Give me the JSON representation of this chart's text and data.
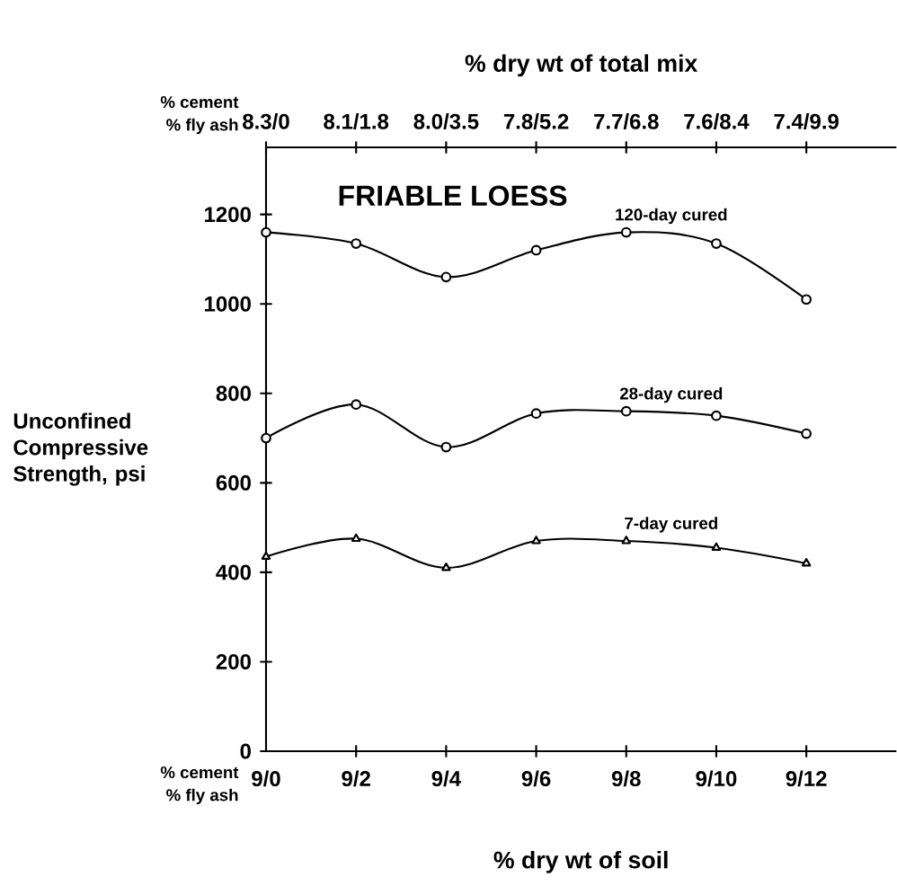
{
  "chart_data": {
    "type": "line",
    "title": "FRIABLE LOESS",
    "xlabel": "% dry wt of soil",
    "x2label": "% dry wt of total mix",
    "ylabel": "Unconfined Compressive Strength, psi",
    "categories": [
      "9/0",
      "9/2",
      "9/4",
      "9/6",
      "9/8",
      "9/10",
      "9/12"
    ],
    "ylim": [
      0,
      1350
    ],
    "yticks": [
      0,
      200,
      400,
      600,
      800,
      1000,
      1200
    ],
    "annotations": [
      "% cement",
      "% fly ash",
      "% cement",
      "% fly ash",
      "8.3/0",
      "8.1/1.8",
      "8.0/3.5",
      "7.8/5.2",
      "7.7/6.8",
      "7.6/8.4",
      "7.4/9.9"
    ],
    "grid": false,
    "line_style": "solid",
    "series": [
      {
        "name": "120-day cured",
        "color": "#000000",
        "marker": "circle",
        "values": [
          1160,
          1135,
          1060,
          1120,
          1160,
          1135,
          1010
        ]
      },
      {
        "name": "28-day cured",
        "color": "#000000",
        "marker": "circle",
        "values": [
          700,
          775,
          680,
          755,
          760,
          750,
          710
        ]
      },
      {
        "name": "7-day cured",
        "color": "#000000",
        "marker": "triangle",
        "values": [
          435,
          475,
          410,
          470,
          470,
          455,
          420
        ]
      }
    ]
  }
}
